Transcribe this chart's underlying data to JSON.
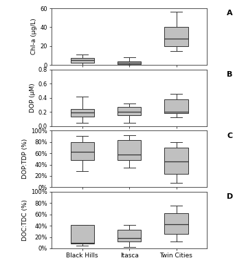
{
  "categories": [
    "Black Hills",
    "Itasca",
    "Twin Cities"
  ],
  "panel_labels": [
    "A",
    "B",
    "C",
    "D"
  ],
  "ylabels": [
    "Chl-a (μg/L)",
    "DOP (μM)",
    "DOP:TDP (%)",
    "DOC:TDC (%)"
  ],
  "panel_A": {
    "Black Hills": {
      "whislo": 0.0,
      "q1": 2.5,
      "med": 5.0,
      "q3": 7.5,
      "whishi": 11.0,
      "fliers": []
    },
    "Itasca": {
      "whislo": 0.0,
      "q1": 0.8,
      "med": 2.0,
      "q3": 4.0,
      "whishi": 8.0,
      "fliers": [
        0.08
      ]
    },
    "Twin Cities": {
      "whislo": 15.0,
      "q1": 20.0,
      "med": 28.0,
      "q3": 40.0,
      "whishi": 56.0,
      "fliers": []
    }
  },
  "panel_A_ylim": [
    0,
    60
  ],
  "panel_A_yticks": [
    0,
    20,
    40,
    60
  ],
  "panel_B": {
    "Black Hills": {
      "whislo": 0.05,
      "q1": 0.13,
      "med": 0.19,
      "q3": 0.24,
      "whishi": 0.42,
      "fliers": []
    },
    "Itasca": {
      "whislo": 0.05,
      "q1": 0.15,
      "med": 0.2,
      "q3": 0.27,
      "whishi": 0.32,
      "fliers": []
    },
    "Twin Cities": {
      "whislo": 0.12,
      "q1": 0.18,
      "med": 0.2,
      "q3": 0.38,
      "whishi": 0.46,
      "fliers": []
    }
  },
  "panel_B_ylim": [
    0.0,
    0.8
  ],
  "panel_B_yticks": [
    0.0,
    0.2,
    0.4,
    0.6,
    0.8
  ],
  "panel_B_yticklabels": [
    "0.0",
    "0.2",
    "0.4",
    "0.6",
    "0.8"
  ],
  "panel_C": {
    "Black Hills": {
      "whislo": 0.28,
      "q1": 0.48,
      "med": 0.62,
      "q3": 0.8,
      "whishi": 0.9,
      "fliers": []
    },
    "Itasca": {
      "whislo": 0.35,
      "q1": 0.48,
      "med": 0.58,
      "q3": 0.83,
      "whishi": 0.92,
      "fliers": []
    },
    "Twin Cities": {
      "whislo": 0.08,
      "q1": 0.23,
      "med": 0.45,
      "q3": 0.7,
      "whishi": 0.8,
      "fliers": []
    }
  },
  "panel_C_ylim": [
    0.0,
    1.0
  ],
  "panel_C_yticks": [
    0.0,
    0.2,
    0.4,
    0.6,
    0.8,
    1.0
  ],
  "panel_C_yticklabels": [
    "0%",
    "20%",
    "40%",
    "60%",
    "80%",
    "100%"
  ],
  "panel_D": {
    "Black Hills": {
      "whislo": 0.05,
      "q1": 0.08,
      "med": 0.1,
      "q3": 0.41,
      "whishi": 0.42,
      "fliers": []
    },
    "Itasca": {
      "whislo": 0.02,
      "q1": 0.12,
      "med": 0.18,
      "q3": 0.33,
      "whishi": 0.42,
      "fliers": []
    },
    "Twin Cities": {
      "whislo": 0.12,
      "q1": 0.25,
      "med": 0.43,
      "q3": 0.62,
      "whishi": 0.75,
      "fliers": []
    }
  },
  "panel_D_ylim": [
    0.0,
    1.0
  ],
  "panel_D_yticks": [
    0.0,
    0.2,
    0.4,
    0.6,
    0.8,
    1.0
  ],
  "panel_D_yticklabels": [
    "0%",
    "20%",
    "40%",
    "60%",
    "80%",
    "100%"
  ],
  "box_facecolor": "#c0c0c0",
  "box_edgecolor": "#333333",
  "median_color": "#333333",
  "whisker_color": "#333333",
  "cap_color": "#333333",
  "flier_color": "#333333",
  "background_color": "#ffffff",
  "positions": [
    1,
    2,
    3
  ],
  "box_width": 0.5
}
